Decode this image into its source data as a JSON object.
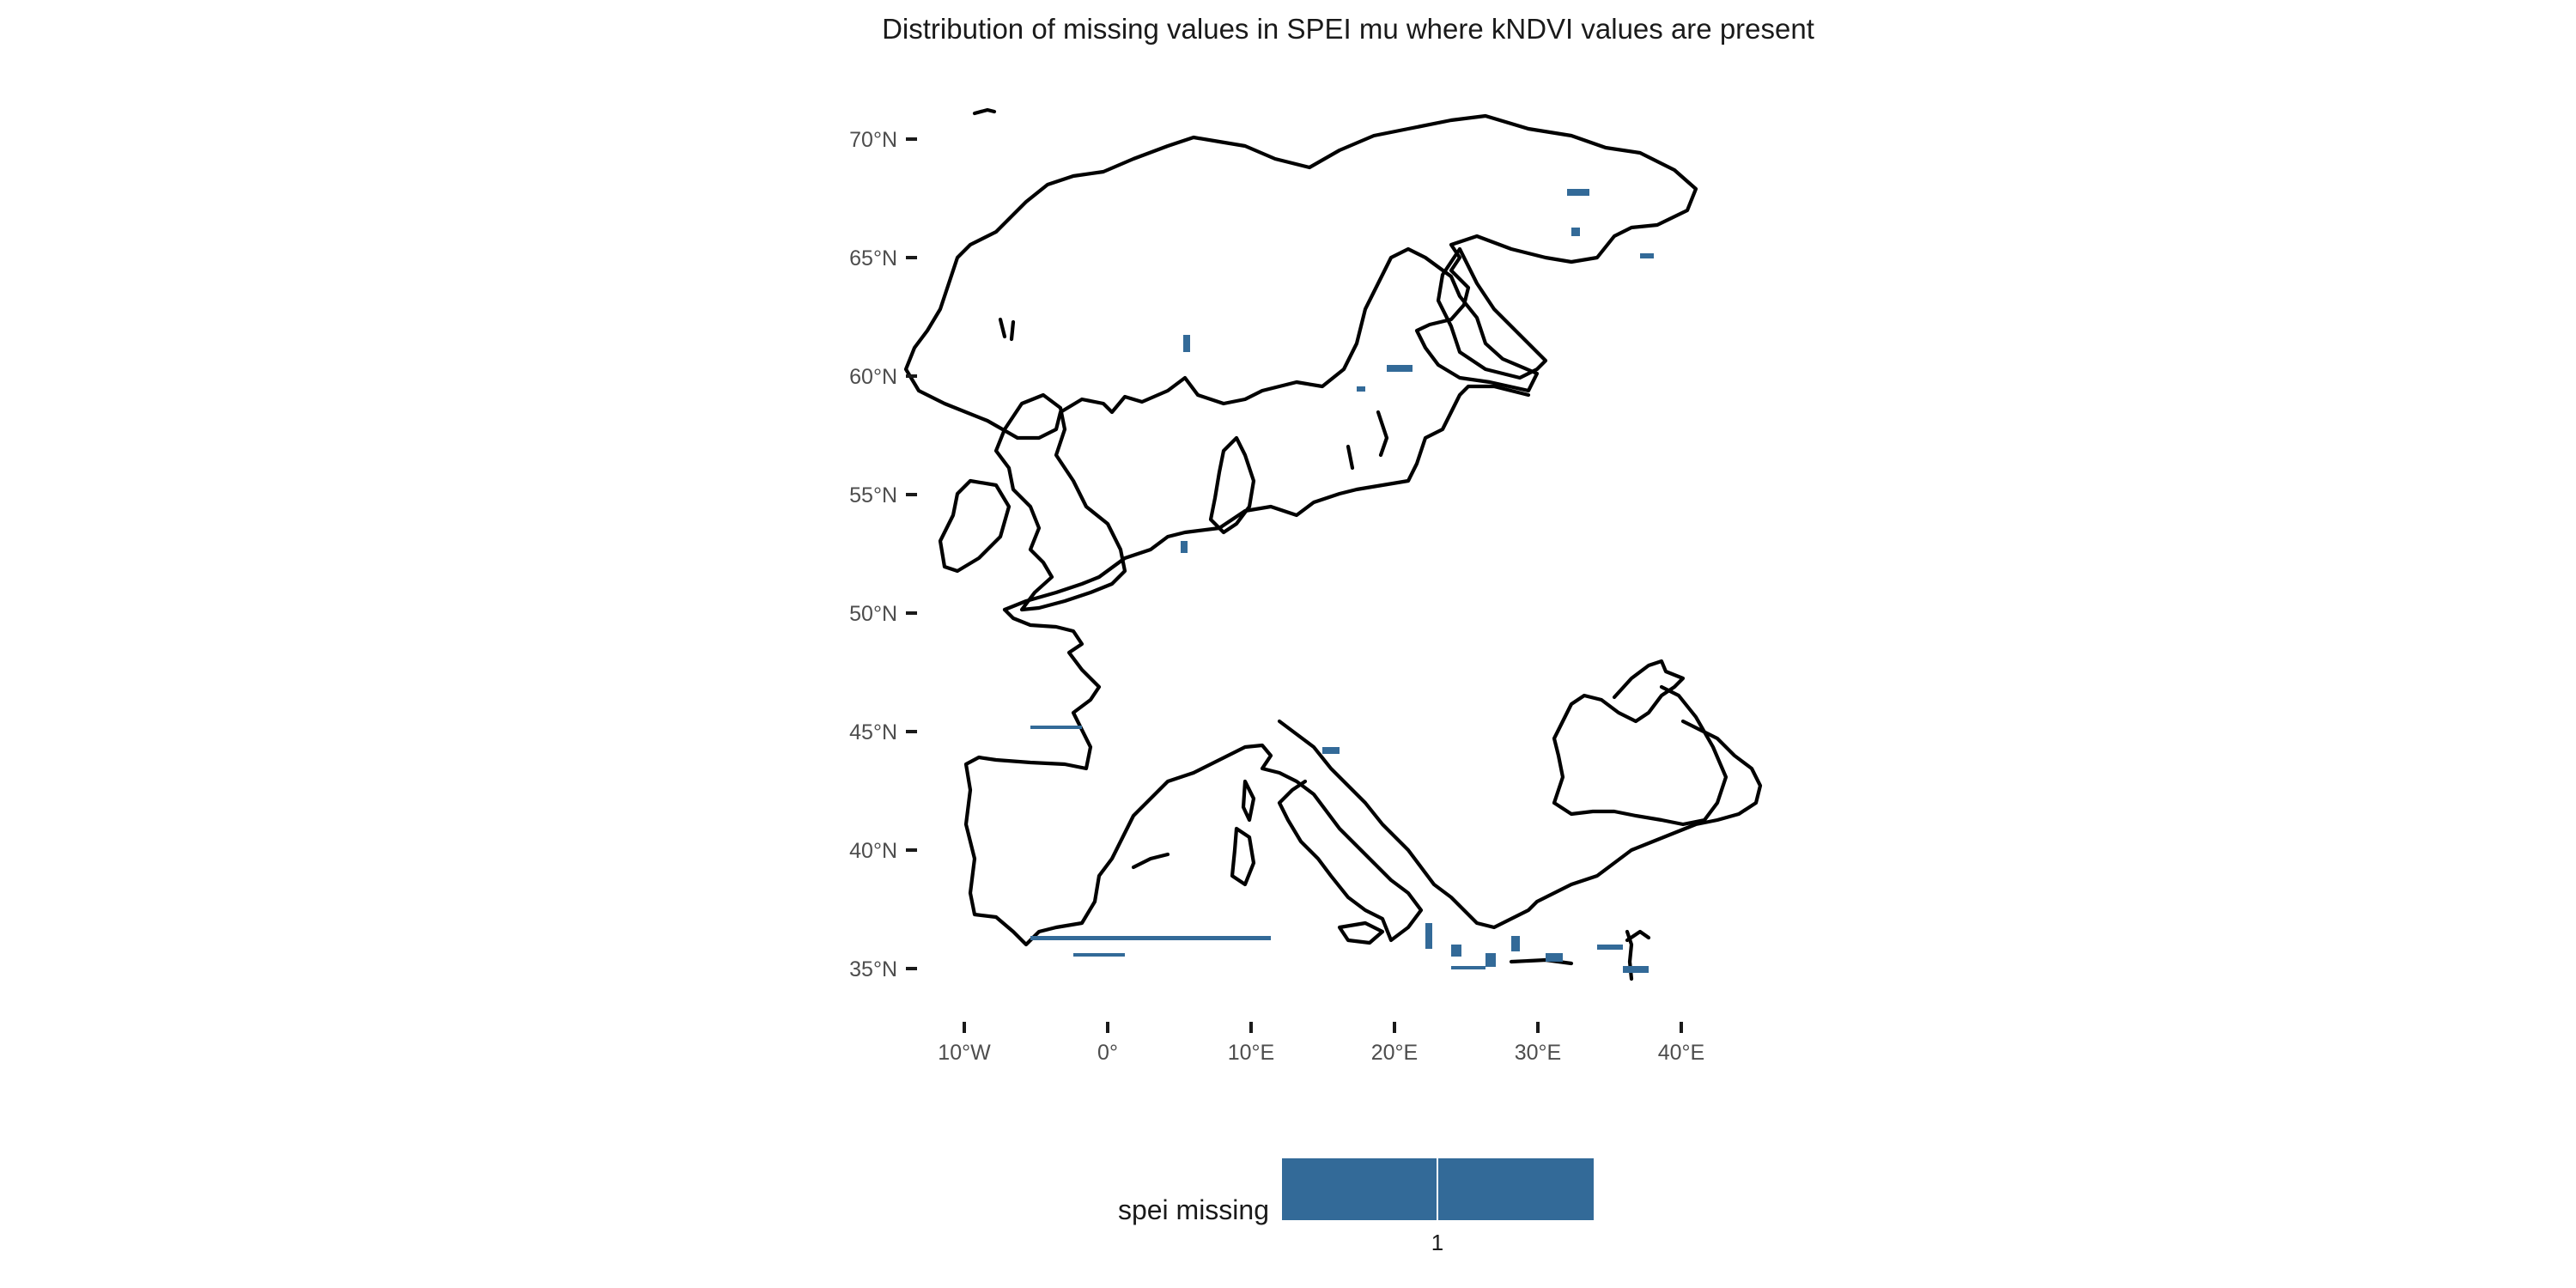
{
  "title": "Distribution of missing values in SPEI mu where kNDVI values are present",
  "axes": {
    "x_ticks": [
      "10°W",
      "0°",
      "10°E",
      "20°E",
      "30°E",
      "40°E"
    ],
    "y_ticks": [
      "70°N",
      "65°N",
      "60°N",
      "55°N",
      "50°N",
      "45°N",
      "40°N",
      "35°N"
    ]
  },
  "legend": {
    "title": "spei missing",
    "label": "1",
    "color": "#336a98"
  },
  "colors": {
    "coastline": "#000000",
    "missing": "#336a98"
  }
}
